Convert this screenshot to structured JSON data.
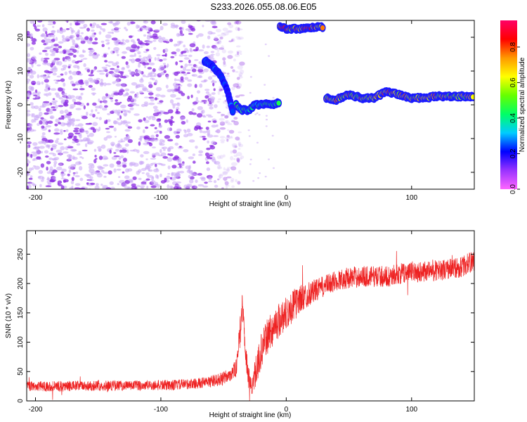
{
  "title": "S233.2026.055.08.06.E05",
  "colors": {
    "snr_line": "#ee2222",
    "axis": "#000000",
    "background": "#ffffff",
    "scatter_noise": "#8a2be2"
  },
  "chart_data": [
    {
      "type": "heatmap",
      "name": "spectrogram",
      "xlabel": "Height of straight line (km)",
      "ylabel": "Frequency (Hz)",
      "xlim": [
        -207,
        150
      ],
      "ylim": [
        -25,
        25
      ],
      "xticks": [
        -200,
        -100,
        0,
        100
      ],
      "yticks": [
        -20,
        -10,
        0,
        10,
        20
      ],
      "xtick_labels": [
        "-200",
        "-100",
        "0",
        "100"
      ],
      "ytick_labels": [
        "-20",
        "-10",
        "0",
        "10",
        "20"
      ],
      "colorbar": {
        "label": "Normalized spectral amplitude",
        "range": [
          0,
          0.95
        ],
        "ticks": [
          0.0,
          0.2,
          0.4,
          0.6,
          0.8
        ],
        "tick_labels": [
          "0.0",
          "0.2",
          "0.4",
          "0.6",
          "0.8"
        ],
        "colormap": [
          "#ff66ff",
          "#9933ff",
          "#0000ff",
          "#00ccff",
          "#00ff66",
          "#66ff00",
          "#ffff00",
          "#ff9900",
          "#ff0000",
          "#ff0066"
        ]
      },
      "noise_region": {
        "x_range": [
          -207,
          -35
        ],
        "y_range": [
          -25,
          25
        ],
        "amplitude": 0.12
      },
      "ridges": [
        {
          "name": "main-signal-descent",
          "points": [
            [
              -65,
              13
            ],
            [
              -60,
              12
            ],
            [
              -55,
              10
            ],
            [
              -50,
              7
            ],
            [
              -46,
              3
            ],
            [
              -44,
              0
            ],
            [
              -42,
              -3
            ]
          ],
          "amplitude": 0.25
        },
        {
          "name": "main-signal-near-zero",
          "points": [
            [
              -40,
              0
            ],
            [
              -35,
              -1.5
            ],
            [
              -30,
              -1.5
            ],
            [
              -25,
              0
            ],
            [
              -20,
              0
            ],
            [
              -15,
              0.5
            ],
            [
              -10,
              0
            ],
            [
              -5,
              1
            ]
          ],
          "amplitude": 0.45
        },
        {
          "name": "main-signal-positive",
          "points": [
            [
              32,
              2
            ],
            [
              40,
              1.5
            ],
            [
              50,
              3
            ],
            [
              60,
              2
            ],
            [
              70,
              2
            ],
            [
              80,
              4
            ],
            [
              90,
              3
            ],
            [
              100,
              2
            ],
            [
              110,
              2
            ],
            [
              120,
              2.5
            ],
            [
              130,
              2.5
            ],
            [
              140,
              2.5
            ],
            [
              150,
              2.5
            ]
          ],
          "amplitude": 0.7
        },
        {
          "name": "top-edge-signal",
          "points": [
            [
              -5,
              23
            ],
            [
              0,
              22.5
            ],
            [
              10,
              22.5
            ],
            [
              20,
              23
            ],
            [
              30,
              23
            ]
          ],
          "amplitude": 0.75
        }
      ]
    },
    {
      "type": "line",
      "name": "snr",
      "xlabel": "Height of straight line (km)",
      "ylabel": "SNR (10 * v/v)",
      "xlim": [
        -207,
        150
      ],
      "ylim": [
        0,
        290
      ],
      "xticks": [
        -200,
        -100,
        0,
        100
      ],
      "yticks": [
        0,
        50,
        100,
        150,
        200,
        250
      ],
      "xtick_labels": [
        "-200",
        "-100",
        "0",
        "100"
      ],
      "ytick_labels": [
        "0",
        "50",
        "100",
        "150",
        "200",
        "250"
      ],
      "series": [
        {
          "name": "SNR",
          "x": [
            -207,
            -180,
            -150,
            -120,
            -90,
            -70,
            -60,
            -50,
            -45,
            -40,
            -37,
            -35,
            -33,
            -30,
            -27,
            -25,
            -20,
            -15,
            -10,
            -5,
            0,
            5,
            10,
            20,
            30,
            40,
            50,
            60,
            80,
            100,
            120,
            140,
            150
          ],
          "y": [
            25,
            25,
            26,
            26,
            27,
            30,
            33,
            38,
            45,
            55,
            110,
            170,
            90,
            40,
            20,
            45,
            85,
            110,
            125,
            140,
            150,
            160,
            172,
            185,
            195,
            205,
            210,
            212,
            212,
            220,
            222,
            228,
            240
          ],
          "noise_amplitude": [
            8,
            9,
            9,
            9,
            9,
            9,
            10,
            12,
            12,
            15,
            25,
            25,
            20,
            20,
            15,
            25,
            30,
            30,
            30,
            30,
            30,
            28,
            25,
            20,
            18,
            18,
            18,
            18,
            18,
            18,
            18,
            18,
            18
          ]
        }
      ]
    }
  ]
}
